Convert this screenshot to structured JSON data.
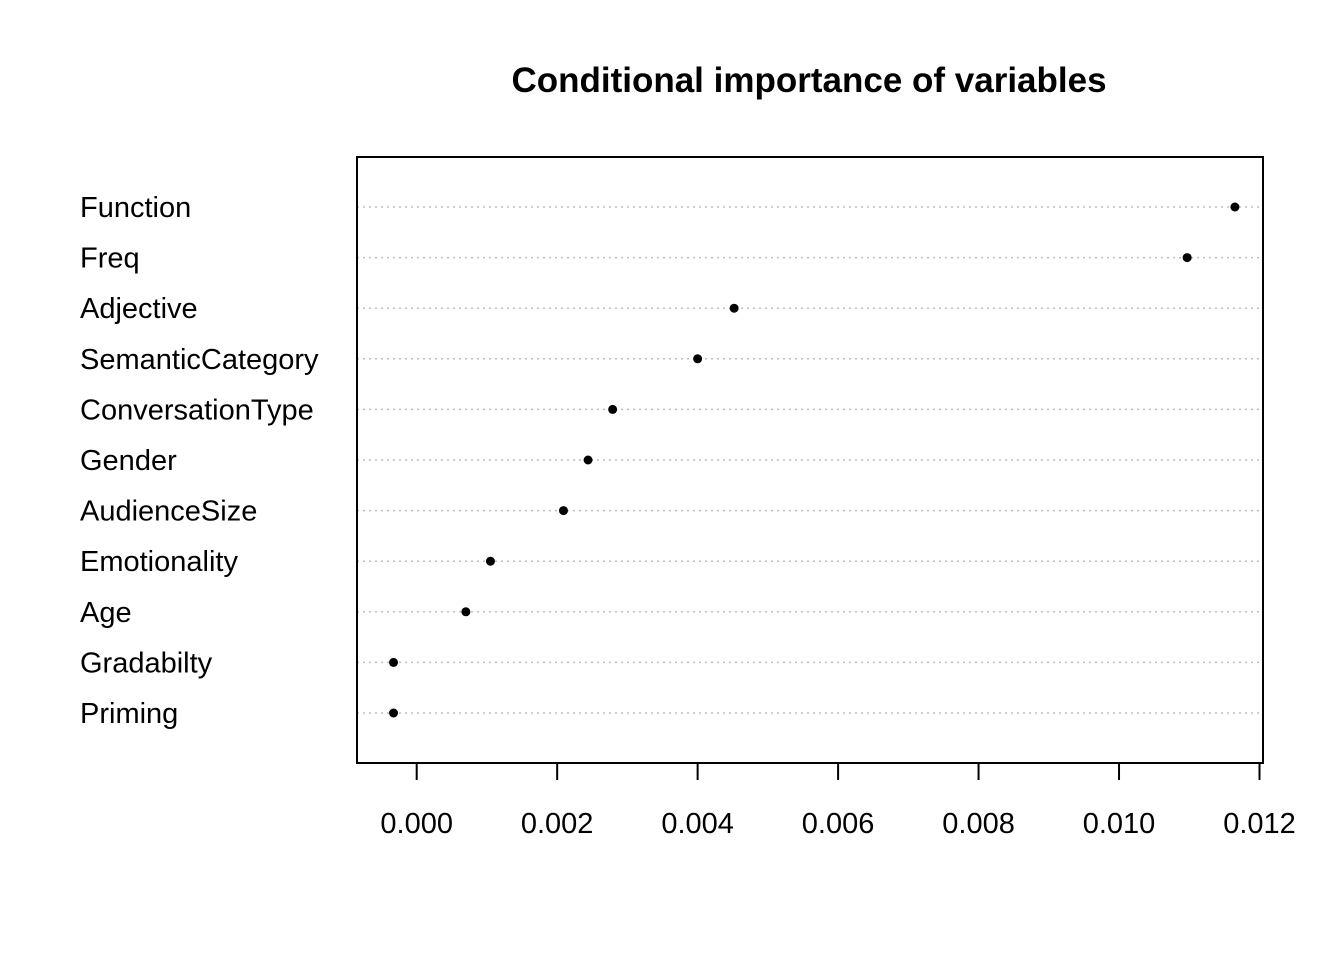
{
  "chart_data": {
    "type": "scatter",
    "subtype": "dotchart",
    "title": "Conditional importance of variables",
    "xlabel": "",
    "ylabel": "",
    "xlim": [
      -0.00085,
      0.01205
    ],
    "xticks": [
      "0.000",
      "0.002",
      "0.004",
      "0.006",
      "0.008",
      "0.010",
      "0.012"
    ],
    "xtick_values": [
      0.0,
      0.002,
      0.004,
      0.006,
      0.008,
      0.01,
      0.012
    ],
    "grid": "dotted horizontal lines",
    "point_color": "#000000",
    "grid_color": "#bebebe",
    "series": [
      {
        "label": "Function",
        "value": 0.01165
      },
      {
        "label": "Freq",
        "value": 0.01097
      },
      {
        "label": "Adjective",
        "value": 0.00452
      },
      {
        "label": "SemanticCategory",
        "value": 0.004
      },
      {
        "label": "ConversationType",
        "value": 0.00279
      },
      {
        "label": "Gender",
        "value": 0.00244
      },
      {
        "label": "AudienceSize",
        "value": 0.00209
      },
      {
        "label": "Emotionality",
        "value": 0.00105
      },
      {
        "label": "Age",
        "value": 0.0007
      },
      {
        "label": "Gradabilty",
        "value": -0.00033
      },
      {
        "label": "Priming",
        "value": -0.00033
      }
    ]
  }
}
